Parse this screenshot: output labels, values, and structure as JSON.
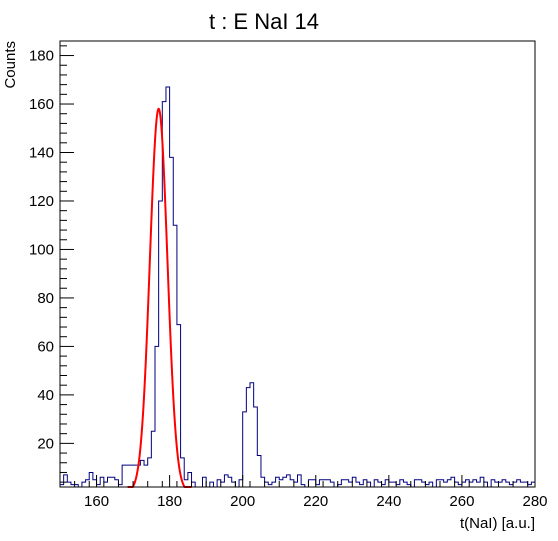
{
  "chart_data": {
    "type": "histogram",
    "title": "t : E NaI 14",
    "xlabel": "t(NaI) [a.u.]",
    "ylabel": "Counts",
    "xlim": [
      150,
      280
    ],
    "ylim": [
      2,
      186
    ],
    "bin_width": 1,
    "x_ticks": [
      160,
      180,
      200,
      220,
      240,
      260,
      280
    ],
    "y_ticks": [
      20,
      40,
      60,
      80,
      100,
      120,
      140,
      160,
      180
    ],
    "grid": false,
    "legend": "none",
    "series": [
      {
        "kind": "histogram",
        "color": "#000080",
        "bin_start": 150,
        "counts": [
          3,
          7,
          4,
          3,
          3,
          2,
          4,
          5,
          8,
          5,
          3,
          6,
          4,
          6,
          6,
          5,
          3,
          11,
          11,
          11,
          11,
          11,
          13,
          11,
          14,
          25,
          60,
          120,
          161,
          167,
          138,
          110,
          69,
          14,
          5,
          8,
          4,
          2,
          2,
          6,
          2,
          4,
          2,
          5,
          4,
          7,
          6,
          4,
          2,
          5,
          33,
          43,
          45,
          35,
          15,
          6,
          4,
          3,
          4,
          6,
          5,
          6,
          7,
          5,
          4,
          7,
          3,
          2,
          5,
          5,
          3,
          5,
          5,
          5,
          4,
          2,
          3,
          5,
          5,
          4,
          6,
          4,
          3,
          5,
          4,
          2,
          5,
          4,
          3,
          5,
          4,
          4,
          3,
          5,
          4,
          3,
          2,
          5,
          5,
          4,
          3,
          4,
          2,
          5,
          5,
          4,
          5,
          6,
          4,
          3,
          4,
          5,
          4,
          5,
          4,
          6,
          4,
          2,
          5,
          4,
          4,
          5,
          4,
          3,
          4,
          5,
          4,
          4,
          3,
          4
        ]
      },
      {
        "kind": "gaussian-fit",
        "color": "#ff0000",
        "amplitude": 158,
        "mean": 177,
        "sigma": 2.4,
        "range": [
          168.5,
          186
        ]
      }
    ]
  }
}
